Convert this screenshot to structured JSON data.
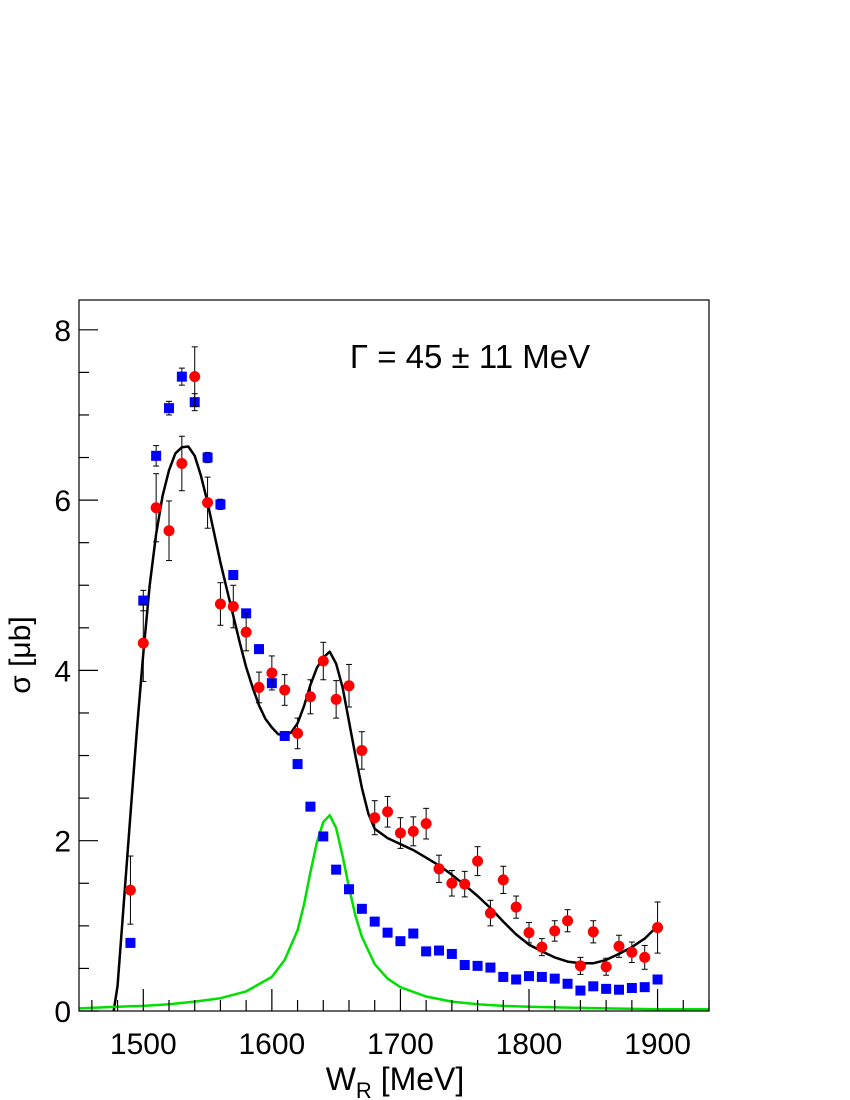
{
  "chart_data": {
    "type": "scatter",
    "xlabel": "W",
    "xlabel_sub": "R",
    "xlabel_unit": " [MeV]",
    "ylabel": "σ [μb]",
    "xlim": [
      1450,
      1940
    ],
    "ylim": [
      0,
      8.35
    ],
    "x_ticks": [
      1500,
      1600,
      1700,
      1800,
      1900
    ],
    "y_ticks": [
      0,
      2,
      4,
      6,
      8
    ],
    "annotation": "Γ = 45 ± 11 MeV",
    "grid": false,
    "colors": {
      "red_points": "#ff0000",
      "blue_points": "#0000ff",
      "fit_total": "#000000",
      "fit_resonance": "#00e000"
    },
    "series": [
      {
        "style": "square",
        "color": "#0000ff",
        "x": [
          1490,
          1500,
          1510,
          1520,
          1530,
          1540,
          1550,
          1560,
          1570,
          1580,
          1590,
          1600,
          1610,
          1620,
          1630,
          1640,
          1650,
          1660,
          1670,
          1680,
          1690,
          1700,
          1710,
          1720,
          1730,
          1740,
          1750,
          1760,
          1770,
          1780,
          1790,
          1800,
          1810,
          1820,
          1830,
          1840,
          1850,
          1860,
          1870,
          1880,
          1890,
          1900
        ],
        "y": [
          0.8,
          4.82,
          6.52,
          7.08,
          7.45,
          7.15,
          6.5,
          5.95,
          5.12,
          4.67,
          4.25,
          3.85,
          3.23,
          2.9,
          2.4,
          2.05,
          1.66,
          1.43,
          1.2,
          1.05,
          0.92,
          0.82,
          0.91,
          0.7,
          0.71,
          0.67,
          0.54,
          0.53,
          0.51,
          0.4,
          0.37,
          0.41,
          0.4,
          0.38,
          0.32,
          0.24,
          0.29,
          0.26,
          0.25,
          0.27,
          0.28,
          0.37
        ],
        "err": [
          0.05,
          0.12,
          0.12,
          0.08,
          0.1,
          0.1,
          0.06,
          0.06,
          0.05,
          0.05,
          0.05,
          0.05,
          0.04,
          0.04,
          0.03,
          0.03,
          0.03,
          0.03,
          0.03,
          0.03,
          0.03,
          0.03,
          0.03,
          0.03,
          0.02,
          0.02,
          0.02,
          0.02,
          0.02,
          0.02,
          0.02,
          0.02,
          0.02,
          0.02,
          0.02,
          0.02,
          0.02,
          0.02,
          0.02,
          0.02,
          0.02,
          0.02
        ]
      },
      {
        "style": "circle",
        "color": "#ff0000",
        "x": [
          1490,
          1500,
          1510,
          1520,
          1530,
          1540,
          1550,
          1560,
          1570,
          1580,
          1590,
          1600,
          1610,
          1620,
          1630,
          1640,
          1650,
          1660,
          1670,
          1680,
          1690,
          1700,
          1710,
          1720,
          1730,
          1740,
          1750,
          1760,
          1770,
          1780,
          1790,
          1800,
          1810,
          1820,
          1830,
          1840,
          1850,
          1860,
          1870,
          1880,
          1890,
          1900
        ],
        "y": [
          1.42,
          4.32,
          5.91,
          5.64,
          6.43,
          7.45,
          5.97,
          4.78,
          4.75,
          4.45,
          3.8,
          3.97,
          3.77,
          3.26,
          3.69,
          4.11,
          3.66,
          3.82,
          3.06,
          2.27,
          2.34,
          2.09,
          2.11,
          2.2,
          1.67,
          1.5,
          1.49,
          1.76,
          1.15,
          1.54,
          1.22,
          0.92,
          0.75,
          0.94,
          1.06,
          0.53,
          0.93,
          0.52,
          0.76,
          0.69,
          0.63,
          0.98
        ],
        "err": [
          0.4,
          0.45,
          0.4,
          0.35,
          0.32,
          0.35,
          0.3,
          0.25,
          0.25,
          0.22,
          0.18,
          0.2,
          0.18,
          0.18,
          0.2,
          0.22,
          0.22,
          0.25,
          0.22,
          0.2,
          0.18,
          0.18,
          0.17,
          0.18,
          0.16,
          0.15,
          0.15,
          0.17,
          0.15,
          0.16,
          0.13,
          0.12,
          0.1,
          0.12,
          0.13,
          0.1,
          0.13,
          0.1,
          0.13,
          0.12,
          0.14,
          0.3
        ]
      },
      {
        "style": "line",
        "color": "#000000",
        "x": [
          1477,
          1480,
          1485,
          1490,
          1495,
          1500,
          1505,
          1510,
          1515,
          1520,
          1525,
          1530,
          1535,
          1540,
          1545,
          1550,
          1555,
          1560,
          1565,
          1570,
          1575,
          1580,
          1585,
          1590,
          1595,
          1600,
          1605,
          1610,
          1615,
          1620,
          1625,
          1630,
          1635,
          1640,
          1645,
          1650,
          1655,
          1660,
          1665,
          1670,
          1675,
          1680,
          1690,
          1700,
          1710,
          1720,
          1730,
          1740,
          1750,
          1760,
          1770,
          1780,
          1790,
          1800,
          1810,
          1820,
          1830,
          1840,
          1850,
          1860,
          1870,
          1880,
          1890,
          1900
        ],
        "y": [
          0.0,
          0.3,
          1.3,
          2.3,
          3.3,
          4.2,
          5.0,
          5.6,
          6.05,
          6.35,
          6.55,
          6.62,
          6.63,
          6.52,
          6.28,
          5.97,
          5.62,
          5.27,
          4.95,
          4.64,
          4.33,
          4.04,
          3.8,
          3.59,
          3.43,
          3.33,
          3.25,
          3.24,
          3.27,
          3.38,
          3.58,
          3.83,
          4.03,
          4.15,
          4.22,
          4.08,
          3.8,
          3.4,
          3.0,
          2.62,
          2.32,
          2.14,
          2.03,
          1.96,
          1.89,
          1.8,
          1.71,
          1.6,
          1.48,
          1.35,
          1.21,
          1.05,
          0.9,
          0.78,
          0.7,
          0.63,
          0.58,
          0.56,
          0.56,
          0.6,
          0.67,
          0.75,
          0.85,
          1.0
        ]
      },
      {
        "style": "line",
        "color": "#00e000",
        "x": [
          1450,
          1480,
          1500,
          1520,
          1540,
          1560,
          1580,
          1600,
          1610,
          1620,
          1625,
          1630,
          1635,
          1640,
          1645,
          1650,
          1655,
          1660,
          1665,
          1670,
          1680,
          1690,
          1700,
          1720,
          1740,
          1760,
          1780,
          1800,
          1830,
          1860,
          1900,
          1940
        ],
        "y": [
          0.03,
          0.05,
          0.06,
          0.08,
          0.11,
          0.15,
          0.23,
          0.4,
          0.6,
          0.95,
          1.25,
          1.63,
          1.98,
          2.22,
          2.3,
          2.15,
          1.82,
          1.45,
          1.12,
          0.87,
          0.55,
          0.38,
          0.28,
          0.17,
          0.11,
          0.08,
          0.06,
          0.05,
          0.04,
          0.03,
          0.02,
          0.02
        ]
      }
    ]
  }
}
